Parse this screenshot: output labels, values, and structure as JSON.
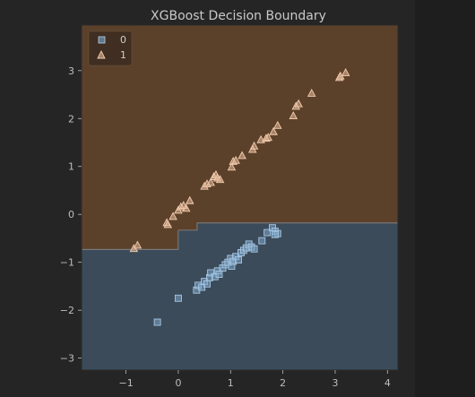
{
  "chart_data": {
    "type": "scatter",
    "title": "XGBoost Decision Boundary",
    "xlabel": "",
    "ylabel": "",
    "xlim": [
      -1.85,
      4.2
    ],
    "ylim": [
      -3.25,
      3.95
    ],
    "xticks": [
      -1,
      0,
      1,
      2,
      3,
      4
    ],
    "yticks": [
      -3,
      -2,
      -1,
      0,
      1,
      2,
      3
    ],
    "grid": false,
    "legend_position": "top-left",
    "regions": [
      {
        "name": "class-0-region",
        "color": "#3b4b5a"
      },
      {
        "name": "class-1-region",
        "color": "#5c412a"
      }
    ],
    "decision_boundary": [
      [
        -1.85,
        -0.73
      ],
      [
        0.0,
        -0.73
      ],
      [
        0.0,
        -0.33
      ],
      [
        0.36,
        -0.33
      ],
      [
        0.36,
        -0.18
      ],
      [
        4.2,
        -0.18
      ]
    ],
    "series": [
      {
        "name": "0",
        "marker": "square",
        "color": "#7ea6c8",
        "points": [
          [
            -0.4,
            -2.25
          ],
          [
            0.0,
            -1.75
          ],
          [
            0.35,
            -1.58
          ],
          [
            0.38,
            -1.48
          ],
          [
            0.45,
            -1.52
          ],
          [
            0.5,
            -1.4
          ],
          [
            0.55,
            -1.45
          ],
          [
            0.6,
            -1.32
          ],
          [
            0.62,
            -1.22
          ],
          [
            0.7,
            -1.3
          ],
          [
            0.75,
            -1.18
          ],
          [
            0.78,
            -1.25
          ],
          [
            0.85,
            -1.12
          ],
          [
            0.9,
            -1.05
          ],
          [
            0.95,
            -1.0
          ],
          [
            1.0,
            -0.92
          ],
          [
            1.02,
            -1.08
          ],
          [
            1.05,
            -0.98
          ],
          [
            1.1,
            -0.88
          ],
          [
            1.15,
            -0.95
          ],
          [
            1.2,
            -0.8
          ],
          [
            1.25,
            -0.75
          ],
          [
            1.3,
            -0.7
          ],
          [
            1.35,
            -0.62
          ],
          [
            1.4,
            -0.68
          ],
          [
            1.45,
            -0.72
          ],
          [
            1.6,
            -0.55
          ],
          [
            1.7,
            -0.38
          ],
          [
            1.8,
            -0.28
          ],
          [
            1.85,
            -0.35
          ],
          [
            1.9,
            -0.4
          ],
          [
            1.85,
            -0.42
          ]
        ]
      },
      {
        "name": "1",
        "marker": "triangle",
        "color": "#e8b898",
        "points": [
          [
            -0.85,
            -0.72
          ],
          [
            -0.78,
            -0.65
          ],
          [
            -0.22,
            -0.18
          ],
          [
            -0.2,
            -0.22
          ],
          [
            -0.1,
            -0.05
          ],
          [
            0.0,
            0.08
          ],
          [
            0.05,
            0.15
          ],
          [
            0.1,
            0.18
          ],
          [
            0.15,
            0.12
          ],
          [
            0.22,
            0.28
          ],
          [
            0.5,
            0.58
          ],
          [
            0.55,
            0.63
          ],
          [
            0.62,
            0.66
          ],
          [
            0.68,
            0.78
          ],
          [
            0.72,
            0.82
          ],
          [
            0.75,
            0.75
          ],
          [
            0.8,
            0.72
          ],
          [
            1.02,
            0.98
          ],
          [
            1.05,
            1.1
          ],
          [
            1.1,
            1.12
          ],
          [
            1.22,
            1.22
          ],
          [
            1.42,
            1.35
          ],
          [
            1.45,
            1.42
          ],
          [
            1.58,
            1.55
          ],
          [
            1.68,
            1.58
          ],
          [
            1.72,
            1.6
          ],
          [
            1.82,
            1.72
          ],
          [
            1.9,
            1.85
          ],
          [
            2.2,
            2.05
          ],
          [
            2.25,
            2.25
          ],
          [
            2.3,
            2.3
          ],
          [
            2.55,
            2.52
          ],
          [
            3.08,
            2.85
          ],
          [
            3.1,
            2.88
          ],
          [
            3.2,
            2.95
          ]
        ]
      }
    ]
  }
}
